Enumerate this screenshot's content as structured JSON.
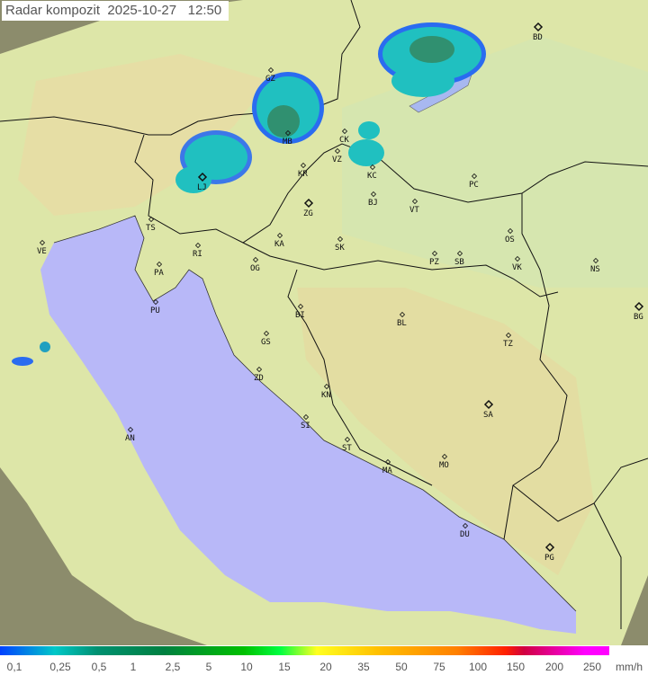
{
  "title": {
    "label": "Radar kompozit",
    "date": "2025-10-27",
    "time": "12:50"
  },
  "colors": {
    "sea": "#b8b8f8",
    "land": "#d8e8a8",
    "mountain": "#e8d8a0",
    "outside": "#8c8c6c",
    "radar_light": "#20c0c0",
    "radar_dark": "#208050",
    "radar_edge": "#2060ff"
  },
  "cities": [
    {
      "code": "BD"
    },
    {
      "code": "GZ"
    },
    {
      "code": "MB"
    },
    {
      "code": "CK"
    },
    {
      "code": "VZ"
    },
    {
      "code": "KR"
    },
    {
      "code": "KC"
    },
    {
      "code": "LJ"
    },
    {
      "code": "TS"
    },
    {
      "code": "ZG"
    },
    {
      "code": "BJ"
    },
    {
      "code": "VT"
    },
    {
      "code": "PC"
    },
    {
      "code": "VE"
    },
    {
      "code": "KA"
    },
    {
      "code": "SK"
    },
    {
      "code": "RI"
    },
    {
      "code": "PA"
    },
    {
      "code": "OG"
    },
    {
      "code": "PZ"
    },
    {
      "code": "SB"
    },
    {
      "code": "OS"
    },
    {
      "code": "VK"
    },
    {
      "code": "NS"
    },
    {
      "code": "PU"
    },
    {
      "code": "BI"
    },
    {
      "code": "BL"
    },
    {
      "code": "BG"
    },
    {
      "code": "GS"
    },
    {
      "code": "TZ"
    },
    {
      "code": "ZD"
    },
    {
      "code": "KN"
    },
    {
      "code": "SA"
    },
    {
      "code": "SI"
    },
    {
      "code": "AN"
    },
    {
      "code": "ST"
    },
    {
      "code": "MA"
    },
    {
      "code": "MO"
    },
    {
      "code": "DU"
    },
    {
      "code": "PG"
    }
  ],
  "legend": {
    "unit": "mm/h",
    "ticks": [
      "0,1",
      "0,25",
      "0,5",
      "1",
      "2,5",
      "5",
      "10",
      "15",
      "20",
      "35",
      "50",
      "75",
      "100",
      "150",
      "200",
      "250"
    ]
  }
}
